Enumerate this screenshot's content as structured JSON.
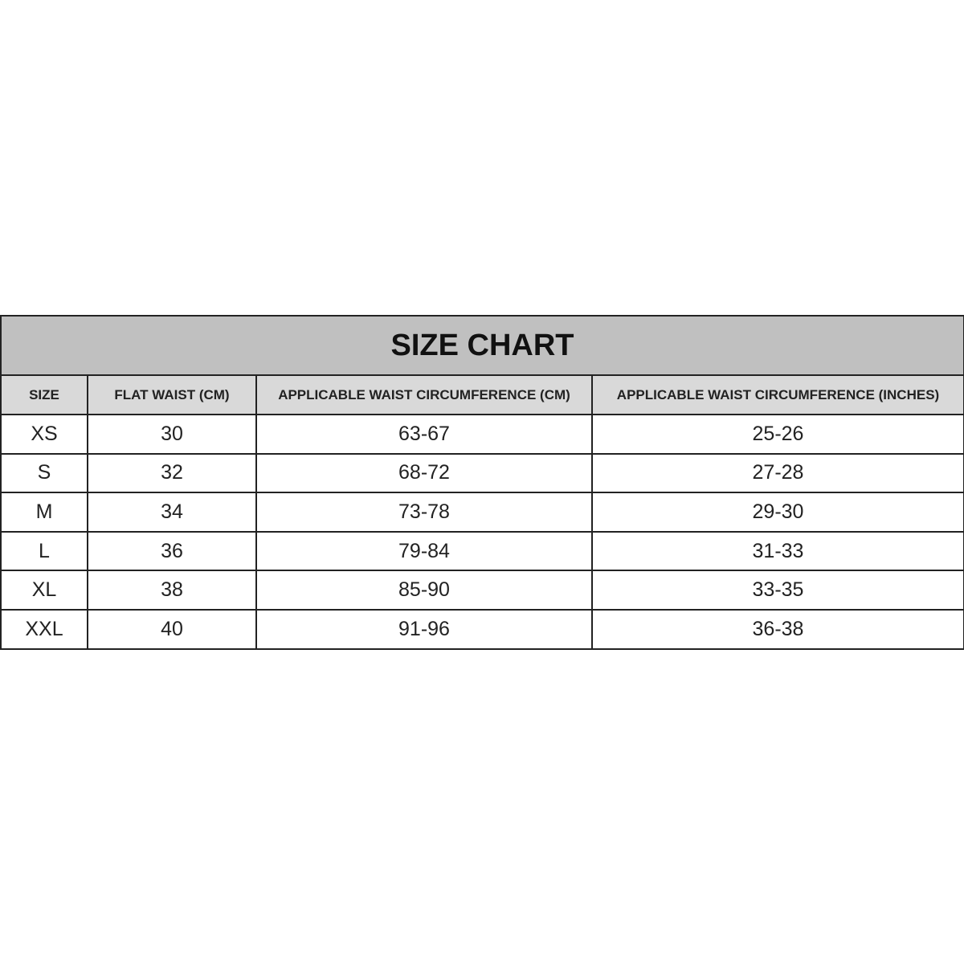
{
  "title": "SIZE CHART",
  "headers": [
    "SIZE",
    "FLAT WAIST (CM)",
    "APPLICABLE WAIST CIRCUMFERENCE (CM)",
    "APPLICABLE WAIST CIRCUMFERENCE (INCHES)"
  ],
  "rows": [
    [
      "XS",
      "30",
      "63-67",
      "25-26"
    ],
    [
      "S",
      "32",
      "68-72",
      "27-28"
    ],
    [
      "M",
      "34",
      "73-78",
      "29-30"
    ],
    [
      "L",
      "36",
      "79-84",
      "31-33"
    ],
    [
      "XL",
      "38",
      "85-90",
      "33-35"
    ],
    [
      "XXL",
      "40",
      "91-96",
      "36-38"
    ]
  ],
  "colors": {
    "title_bg": "#c0c0c0",
    "header_bg": "#d9d9d9",
    "border": "#222222"
  }
}
